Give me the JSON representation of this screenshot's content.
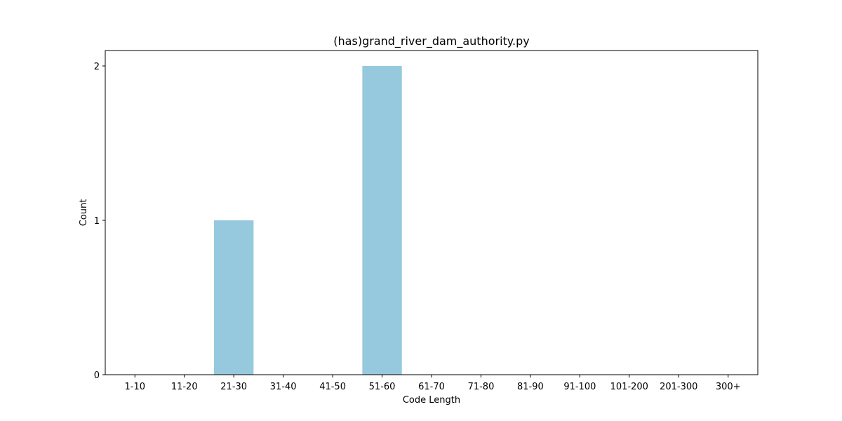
{
  "chart_data": {
    "type": "bar",
    "title": "(has)grand_river_dam_authority.py",
    "xlabel": "Code Length",
    "ylabel": "Count",
    "categories": [
      "1-10",
      "11-20",
      "21-30",
      "31-40",
      "41-50",
      "51-60",
      "61-70",
      "71-80",
      "81-90",
      "91-100",
      "101-200",
      "201-300",
      "300+"
    ],
    "values": [
      0,
      0,
      1,
      0,
      0,
      2,
      0,
      0,
      0,
      0,
      0,
      0,
      0
    ],
    "ylim": [
      0,
      2.1
    ],
    "yticks": [
      0,
      1,
      2
    ],
    "grid": false,
    "bar_color": "#96c9dd"
  }
}
